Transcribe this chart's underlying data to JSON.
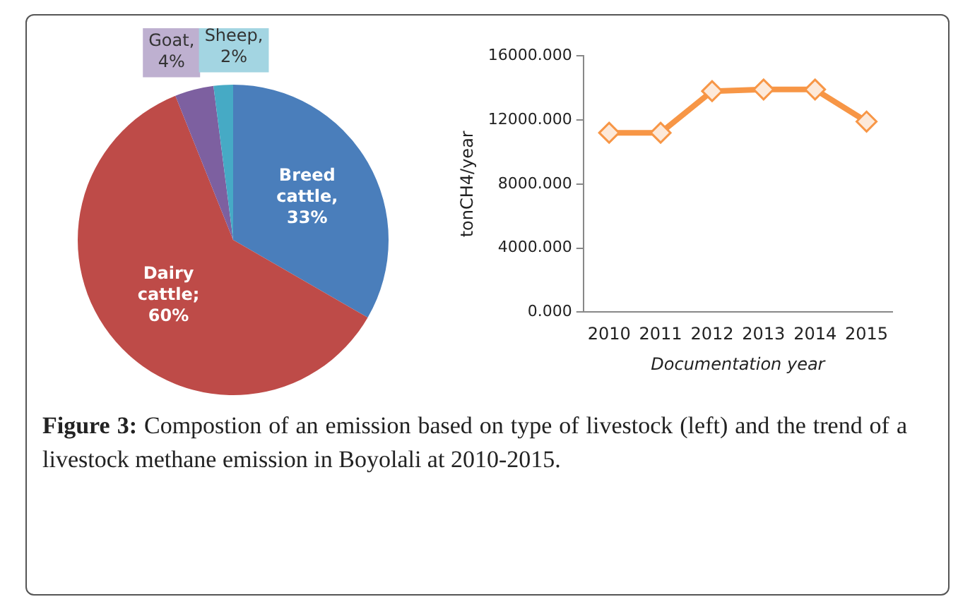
{
  "chart_data": [
    {
      "type": "pie",
      "categories": [
        "Breed cattle",
        "Dairy cattle",
        "Goat",
        "Sheep"
      ],
      "values": [
        33,
        60,
        4,
        2
      ],
      "colors": [
        "#4a7ebb",
        "#be4b48",
        "#7d60a0",
        "#46aac5"
      ],
      "value_labels": [
        ", 33%",
        "; 60%",
        ", 4%",
        ", 2%"
      ],
      "legend": false,
      "annotations": [
        "Figure 3: Compostion of an emission based on type of livestock (left) and the trend of a livestock methane emission in Boyolali at 2010-2015."
      ]
    },
    {
      "type": "line",
      "categories": [
        "2010",
        "2011",
        "2012",
        "2013",
        "2014",
        "2015"
      ],
      "xlabel": "Documentation year",
      "ylabel": "tonCH4/year",
      "series": [
        {
          "color": "#f79646",
          "values": [
            11200,
            11200,
            13800,
            13900,
            13900,
            11900
          ]
        }
      ],
      "ylim": [
        0,
        16000
      ],
      "yticks": [
        {
          "value": 0,
          "label": "0.000"
        },
        {
          "value": 4000,
          "label": "4000.000"
        },
        {
          "value": 8000,
          "label": "8000.000"
        },
        {
          "value": 12000,
          "label": "12000.000"
        },
        {
          "value": 16000,
          "label": "16000.000"
        }
      ],
      "grid": false,
      "legend": false,
      "marker": "diamond",
      "line_style": "solid"
    }
  ]
}
